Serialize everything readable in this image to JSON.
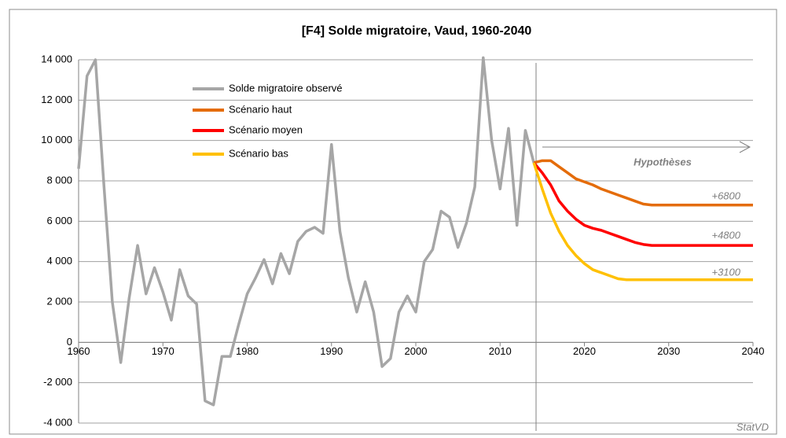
{
  "chart_data": {
    "type": "line",
    "title": "[F4]  Solde migratoire, Vaud, 1960-2040",
    "xlim": [
      1960,
      2040
    ],
    "xticks": [
      1960,
      1970,
      1980,
      1990,
      2000,
      2010,
      2020,
      2030,
      2040
    ],
    "ylim": [
      -4000,
      14000
    ],
    "yticks": [
      {
        "value": -4000,
        "label": "-4 000"
      },
      {
        "value": -2000,
        "label": "-2 000"
      },
      0,
      {
        "value": 2000,
        "label": "2 000"
      },
      {
        "value": 4000,
        "label": "4 000"
      },
      {
        "value": 6000,
        "label": "6 000"
      },
      {
        "value": 8000,
        "label": "8 000"
      },
      {
        "value": 10000,
        "label": "10 000"
      },
      {
        "value": 12000,
        "label": "12 000"
      },
      {
        "value": 14000,
        "label": "14 000"
      }
    ],
    "grid": true,
    "legend": "upper left",
    "series": [
      {
        "name": "Solde migratoire observé",
        "color": "#a6a6a6",
        "x": [
          1960,
          1961,
          1962,
          1963,
          1964,
          1965,
          1966,
          1967,
          1968,
          1969,
          1970,
          1971,
          1972,
          1973,
          1974,
          1975,
          1976,
          1977,
          1978,
          1979,
          1980,
          1981,
          1982,
          1983,
          1984,
          1985,
          1986,
          1987,
          1988,
          1989,
          1990,
          1991,
          1992,
          1993,
          1994,
          1995,
          1996,
          1997,
          1998,
          1999,
          2000,
          2001,
          2002,
          2003,
          2004,
          2005,
          2006,
          2007,
          2008,
          2009,
          2010,
          2011,
          2012,
          2013,
          2014
        ],
        "values": [
          8600,
          13200,
          14000,
          7800,
          2000,
          -1000,
          2200,
          4800,
          2400,
          3700,
          2500,
          1100,
          3600,
          2300,
          1900,
          -2900,
          -3100,
          -700,
          -700,
          900,
          2400,
          3200,
          4100,
          2900,
          4400,
          3400,
          5000,
          5500,
          5700,
          5400,
          9800,
          5500,
          3200,
          1500,
          3000,
          1500,
          -1200,
          -800,
          1500,
          2300,
          1500,
          4000,
          4600,
          6500,
          6200,
          4700,
          5900,
          7700,
          14100,
          10000,
          7600,
          10600,
          5800,
          10500,
          8900
        ]
      },
      {
        "name": "Scénario haut",
        "color": "#e46c0a",
        "x": [
          2014,
          2015,
          2016,
          2017,
          2018,
          2019,
          2020,
          2021,
          2022,
          2023,
          2024,
          2025,
          2026,
          2027,
          2028,
          2040
        ],
        "values": [
          8900,
          9000,
          9000,
          8700,
          8400,
          8100,
          7950,
          7800,
          7600,
          7450,
          7300,
          7150,
          7000,
          6850,
          6800,
          6800
        ]
      },
      {
        "name": "Scénario moyen",
        "color": "#ff0000",
        "x": [
          2014,
          2015,
          2016,
          2017,
          2018,
          2019,
          2020,
          2021,
          2022,
          2023,
          2024,
          2025,
          2026,
          2027,
          2028,
          2040
        ],
        "values": [
          8900,
          8400,
          7800,
          7000,
          6500,
          6100,
          5800,
          5650,
          5550,
          5400,
          5250,
          5100,
          4950,
          4850,
          4800,
          4800
        ]
      },
      {
        "name": "Scénario bas",
        "color": "#ffc000",
        "x": [
          2014,
          2015,
          2016,
          2017,
          2018,
          2019,
          2020,
          2021,
          2022,
          2023,
          2024,
          2025,
          2040
        ],
        "values": [
          8900,
          7600,
          6400,
          5500,
          4800,
          4300,
          3900,
          3600,
          3450,
          3300,
          3150,
          3100,
          3100
        ]
      }
    ],
    "annotations": [
      "Hypothèses",
      "+6800",
      "+4800",
      "+3100",
      "StatVD"
    ]
  }
}
